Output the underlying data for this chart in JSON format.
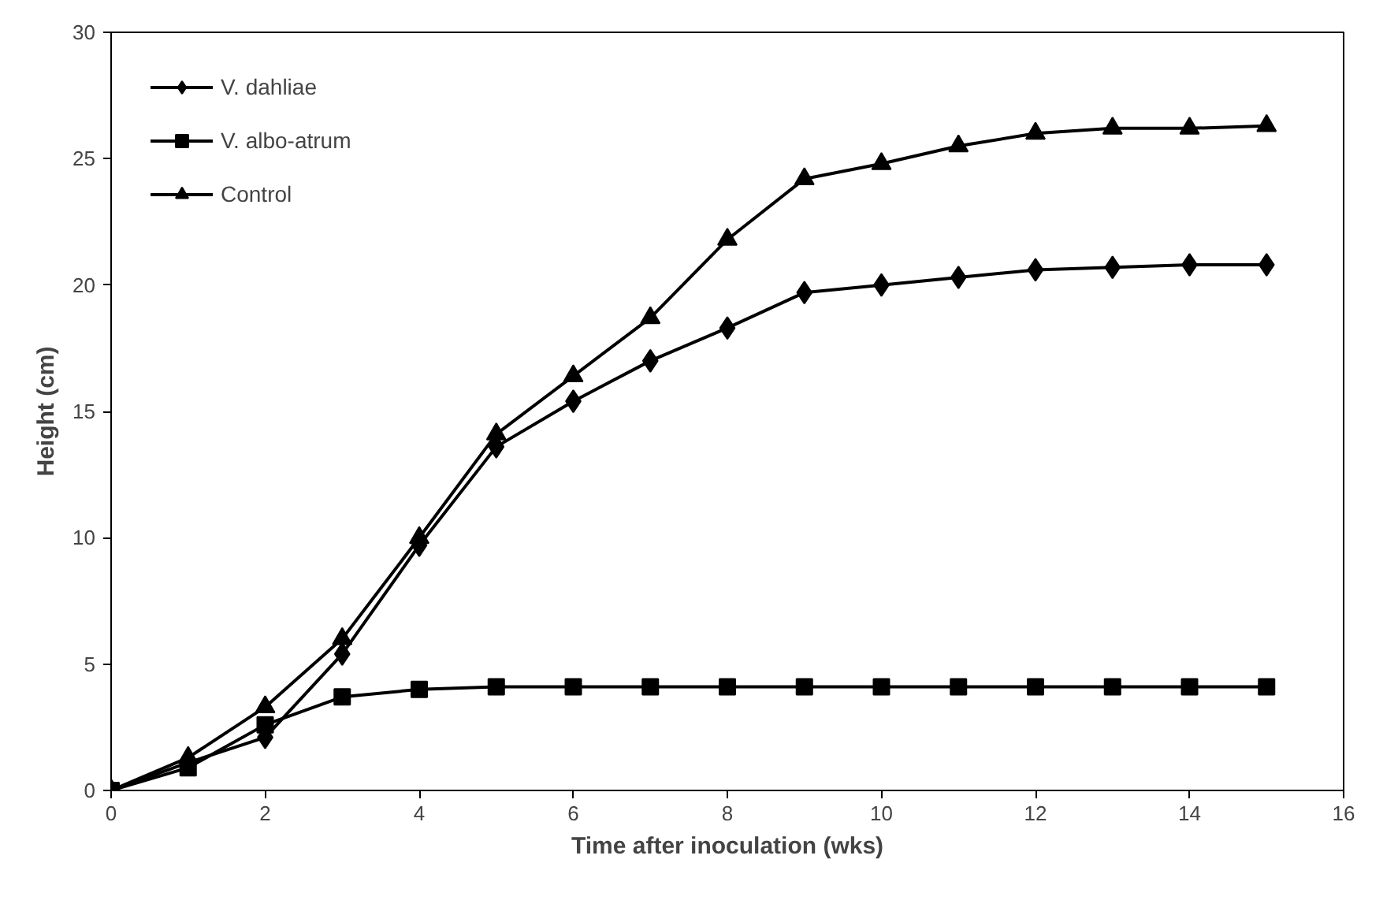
{
  "chart_data": {
    "type": "line",
    "xlabel": "Time after inoculation (wks)",
    "ylabel": "Height (cm)",
    "x": [
      0,
      1,
      2,
      3,
      4,
      5,
      6,
      7,
      8,
      9,
      10,
      11,
      12,
      13,
      14,
      15
    ],
    "series": [
      {
        "name": "V. dahliae",
        "color": "#000000",
        "marker": "diamond",
        "values": [
          0,
          1.1,
          2.1,
          5.4,
          9.7,
          13.6,
          15.4,
          17.0,
          18.3,
          19.7,
          20.0,
          20.3,
          20.6,
          20.7,
          20.8,
          20.8
        ]
      },
      {
        "name": "V. albo-atrum",
        "color": "#000000",
        "marker": "square",
        "values": [
          0,
          0.9,
          2.6,
          3.7,
          4.0,
          4.1,
          4.1,
          4.1,
          4.1,
          4.1,
          4.1,
          4.1,
          4.1,
          4.1,
          4.1,
          4.1
        ]
      },
      {
        "name": "Control",
        "color": "#000000",
        "marker": "triangle",
        "values": [
          0,
          1.3,
          3.3,
          6.0,
          10.0,
          14.1,
          16.4,
          18.7,
          21.8,
          24.2,
          24.8,
          25.5,
          26.0,
          26.2,
          26.2,
          26.3
        ]
      }
    ],
    "xlim": [
      0,
      16
    ],
    "xticks": [
      0,
      2,
      4,
      6,
      8,
      10,
      12,
      14,
      16
    ],
    "ylim": [
      0,
      30
    ],
    "yticks": [
      0,
      5,
      10,
      15,
      20,
      25,
      30
    ],
    "grid": false,
    "legend": "top left",
    "line_style": "solid"
  }
}
